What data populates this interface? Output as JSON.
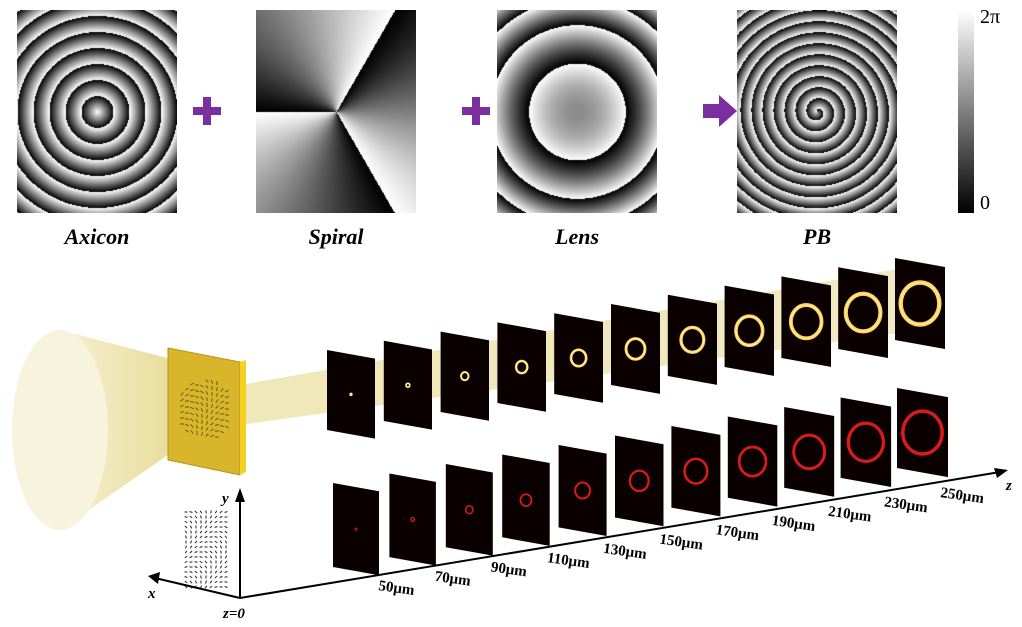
{
  "panels": [
    {
      "label": "Axicon",
      "type": "axicon"
    },
    {
      "label": "Spiral",
      "type": "spiral"
    },
    {
      "label": "Lens",
      "type": "lens"
    },
    {
      "label": "PB",
      "type": "pb"
    }
  ],
  "operators": [
    "+",
    "+",
    "arrow"
  ],
  "colors": {
    "operator": "#7b2f9e",
    "beam": "#f2eab8",
    "plate": "#d8b52a",
    "ring_top": "#ffd060",
    "ring_bottom": "#ff2020"
  },
  "colorbar": {
    "max_label": "2π",
    "min_label": "0"
  },
  "axes": {
    "x": "x",
    "y": "y",
    "z": "z",
    "origin": "z=0"
  },
  "z_positions": [
    "50µm",
    "70µm",
    "90µm",
    "110µm",
    "130µm",
    "150µm",
    "170µm",
    "190µm",
    "210µm",
    "230µm",
    "250µm"
  ]
}
